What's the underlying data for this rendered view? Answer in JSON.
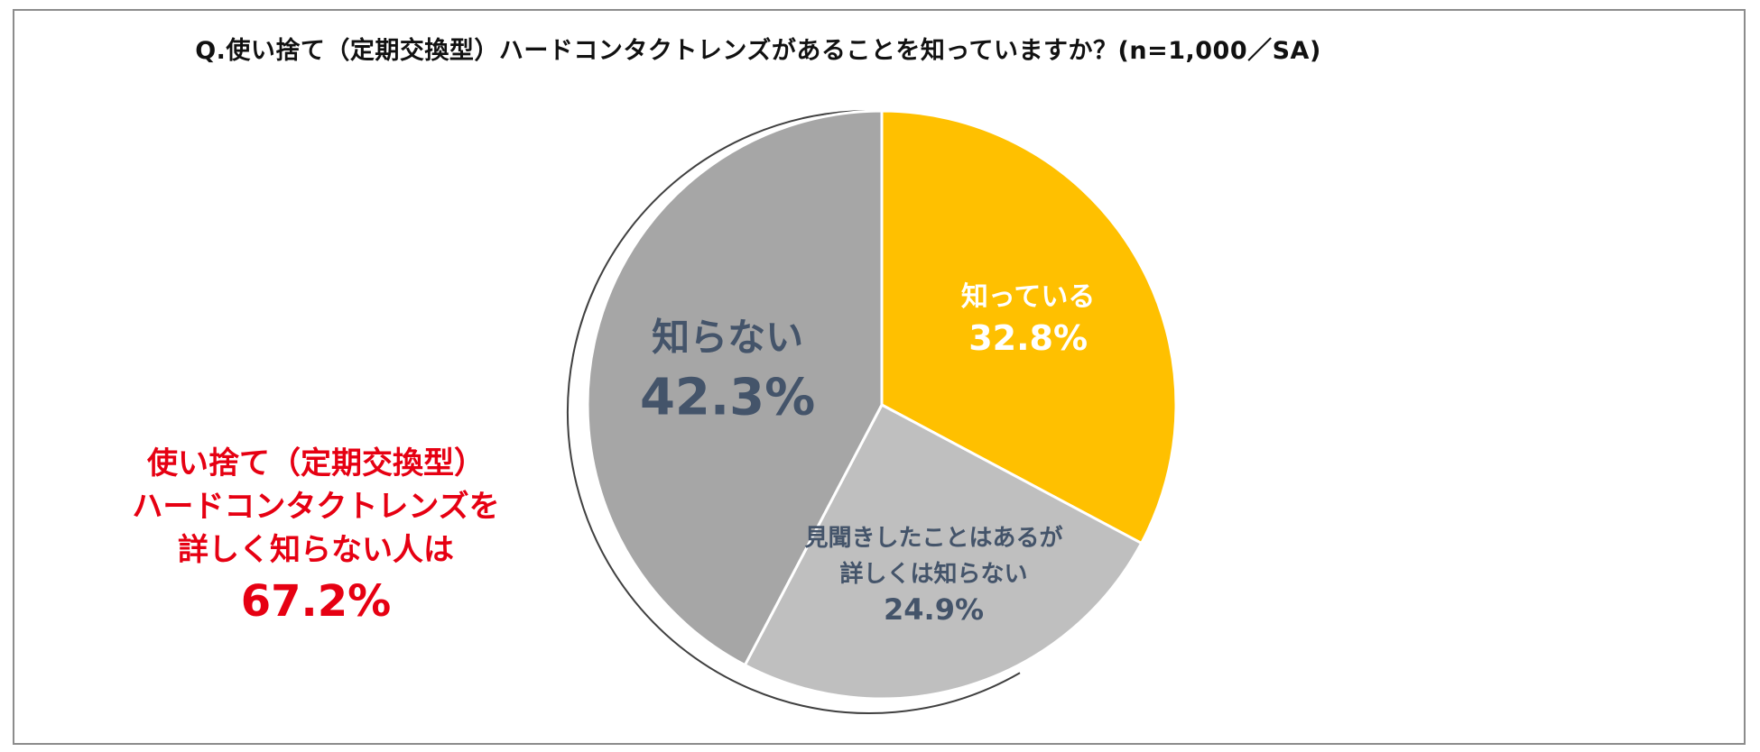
{
  "title": "Q.使い捨て（定期交換型）ハードコンタクトレンズがあることを知っていますか？(n=1,000／SA)",
  "chart_data": {
    "type": "pie",
    "start_angle_deg": 0,
    "direction": "clockwise",
    "slices": [
      {
        "label": "知っている",
        "label_lines": [
          "知っている"
        ],
        "value": 32.8,
        "value_text": "32.8%",
        "color": "#FFC000",
        "text_color": "#FFFFFF"
      },
      {
        "label": "見聞きしたことはあるが詳しくは知らない",
        "label_lines": [
          "見聞きしたことはあるが",
          "詳しくは知らない"
        ],
        "value": 24.9,
        "value_text": "24.9%",
        "color": "#BFBFBF",
        "text_color": "#44546A"
      },
      {
        "label": "知らない",
        "label_lines": [
          "知らない"
        ],
        "value": 42.3,
        "value_text": "42.3%",
        "color": "#A6A6A6",
        "text_color": "#44546A"
      }
    ]
  },
  "callout": {
    "lines": [
      "使い捨て（定期交換型）",
      "ハードコンタクトレンズを",
      "詳しく知らない人は"
    ],
    "value": "67.2%",
    "color": "#E60012"
  }
}
